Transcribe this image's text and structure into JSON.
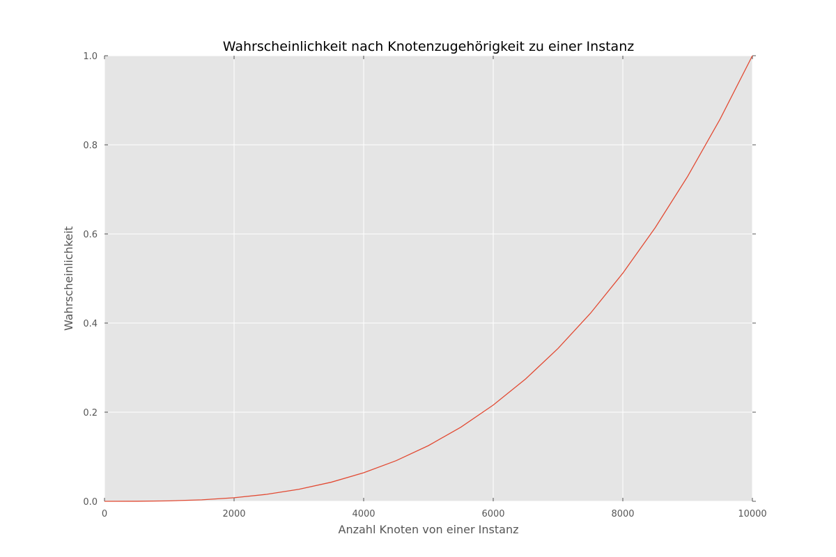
{
  "chart_data": {
    "type": "line",
    "title": "Wahrscheinlichkeit nach Knotenzugehörigkeit zu einer Instanz",
    "xlabel": "Anzahl Knoten von einer Instanz",
    "ylabel": "Wahrscheinlichkeit",
    "xlim": [
      0,
      10000
    ],
    "ylim": [
      0,
      1.0
    ],
    "x_ticks": [
      0,
      2000,
      4000,
      6000,
      8000,
      10000
    ],
    "x_tick_labels": [
      "0",
      "2000",
      "4000",
      "6000",
      "8000",
      "10000"
    ],
    "y_ticks": [
      0.0,
      0.2,
      0.4,
      0.6,
      0.8,
      1.0
    ],
    "y_tick_labels": [
      "0.0",
      "0.2",
      "0.4",
      "0.6",
      "0.8",
      "1.0"
    ],
    "grid": true,
    "series": [
      {
        "color": "#e24a33",
        "x": [
          0,
          500,
          1000,
          1500,
          2000,
          2500,
          3000,
          3500,
          4000,
          4500,
          5000,
          5500,
          6000,
          6500,
          7000,
          7500,
          8000,
          8500,
          9000,
          9500,
          10000
        ],
        "y": [
          0.0,
          0.000125,
          0.001,
          0.003375,
          0.008,
          0.015625,
          0.027,
          0.042875,
          0.064,
          0.091125,
          0.125,
          0.166375,
          0.216,
          0.274625,
          0.343,
          0.421875,
          0.512,
          0.614125,
          0.729,
          0.857375,
          1.0
        ]
      }
    ],
    "colors": {
      "plot_background": "#e5e5e5",
      "grid": "#ffffff",
      "line": "#e24a33"
    }
  }
}
